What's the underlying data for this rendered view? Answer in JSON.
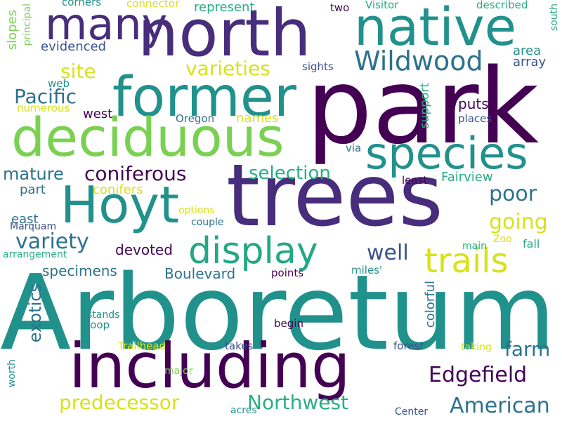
{
  "background": "#ffffff",
  "palette": {
    "dark_purple": "#440154",
    "purple": "#472d7b",
    "indigo": "#3b528b",
    "blue": "#2c728e",
    "teal": "#21918c",
    "green_teal": "#28ae80",
    "green": "#5ec962",
    "lime": "#addc30",
    "yellow": "#fde725"
  },
  "words": [
    {
      "text": "Arboretum",
      "color": "#21918c"
    },
    {
      "text": "park",
      "color": "#440154"
    },
    {
      "text": "trees",
      "color": "#472d7b"
    },
    {
      "text": "including",
      "color": "#440154"
    },
    {
      "text": "north",
      "color": "#472d7b"
    },
    {
      "text": "former",
      "color": "#21918c"
    },
    {
      "text": "deciduous",
      "color": "#7ad151"
    },
    {
      "text": "native",
      "color": "#21918c"
    },
    {
      "text": "Hoyt",
      "color": "#21918c"
    },
    {
      "text": "species",
      "color": "#21918c"
    },
    {
      "text": "many",
      "color": "#472d7b"
    },
    {
      "text": "display",
      "color": "#22a884"
    },
    {
      "text": "trails",
      "color": "#d8e219"
    },
    {
      "text": "Wildwood",
      "color": "#2c728e"
    },
    {
      "text": "Edgefield",
      "color": "#440154"
    },
    {
      "text": "American",
      "color": "#2c728e"
    },
    {
      "text": "Northwest",
      "color": "#28ae80"
    },
    {
      "text": "predecessor",
      "color": "#d8e219"
    },
    {
      "text": "exotics",
      "color": "#2c728e"
    },
    {
      "text": "variety",
      "color": "#2c728e"
    },
    {
      "text": "well",
      "color": "#3b528b"
    },
    {
      "text": "going",
      "color": "#d8e219"
    },
    {
      "text": "poor",
      "color": "#2c728e"
    },
    {
      "text": "farm",
      "color": "#2c728e"
    },
    {
      "text": "varieties",
      "color": "#d8e219"
    },
    {
      "text": "Pacific",
      "color": "#2c728e"
    },
    {
      "text": "site",
      "color": "#d8e219"
    },
    {
      "text": "selection",
      "color": "#28ae80"
    },
    {
      "text": "coniferous",
      "color": "#440154"
    },
    {
      "text": "mature",
      "color": "#2c728e"
    },
    {
      "text": "Boulevard",
      "color": "#2c728e"
    },
    {
      "text": "specimens",
      "color": "#2c728e"
    },
    {
      "text": "colorful",
      "color": "#2c728e"
    },
    {
      "text": "represent",
      "color": "#28ae80"
    },
    {
      "text": "evidenced",
      "color": "#3b528b"
    },
    {
      "text": "devoted",
      "color": "#440154"
    },
    {
      "text": "support",
      "color": "#28ae80"
    },
    {
      "text": "Fairview",
      "color": "#28ae80"
    },
    {
      "text": "puts",
      "color": "#440154"
    },
    {
      "text": "area",
      "color": "#21918c"
    },
    {
      "text": "array",
      "color": "#3b528b"
    },
    {
      "text": "slopes",
      "color": "#7ad151"
    },
    {
      "text": "names",
      "color": "#d8e219"
    },
    {
      "text": "west",
      "color": "#440154"
    },
    {
      "text": "part",
      "color": "#2c728e"
    },
    {
      "text": "conifers",
      "color": "#d8e219"
    },
    {
      "text": "east",
      "color": "#2c728e"
    },
    {
      "text": "Visitor",
      "color": "#28ae80"
    },
    {
      "text": "described",
      "color": "#28ae80"
    },
    {
      "text": "connector",
      "color": "#d8e219"
    },
    {
      "text": "corners",
      "color": "#21918c"
    },
    {
      "text": "principal",
      "color": "#7ad151"
    },
    {
      "text": "web",
      "color": "#21918c"
    },
    {
      "text": "numerous",
      "color": "#d8e219"
    },
    {
      "text": "sights",
      "color": "#3b528b"
    },
    {
      "text": "two",
      "color": "#440154"
    },
    {
      "text": "Oregon",
      "color": "#2c728e"
    },
    {
      "text": "places",
      "color": "#3b528b"
    },
    {
      "text": "south",
      "color": "#28ae80"
    },
    {
      "text": "via",
      "color": "#2c728e"
    },
    {
      "text": "least",
      "color": "#440154"
    },
    {
      "text": "options",
      "color": "#d8e219"
    },
    {
      "text": "couple",
      "color": "#2c728e"
    },
    {
      "text": "Marquam",
      "color": "#3b528b"
    },
    {
      "text": "arrangement",
      "color": "#28ae80"
    },
    {
      "text": "main",
      "color": "#28ae80"
    },
    {
      "text": "Zoo",
      "color": "#d8e219"
    },
    {
      "text": "fall",
      "color": "#28ae80"
    },
    {
      "text": "points",
      "color": "#440154"
    },
    {
      "text": "miles'",
      "color": "#21918c"
    },
    {
      "text": "stands",
      "color": "#21918c"
    },
    {
      "text": "loop",
      "color": "#21918c"
    },
    {
      "text": "begin",
      "color": "#440154"
    },
    {
      "text": "Trailhead",
      "color": "#d8e219"
    },
    {
      "text": "takes",
      "color": "#3b528b"
    },
    {
      "text": "forest",
      "color": "#3b528b"
    },
    {
      "text": "taking",
      "color": "#d8e219"
    },
    {
      "text": "worth",
      "color": "#21918c"
    },
    {
      "text": "major",
      "color": "#7ad151"
    },
    {
      "text": "acres",
      "color": "#21918c"
    },
    {
      "text": "Center",
      "color": "#3b528b"
    }
  ]
}
